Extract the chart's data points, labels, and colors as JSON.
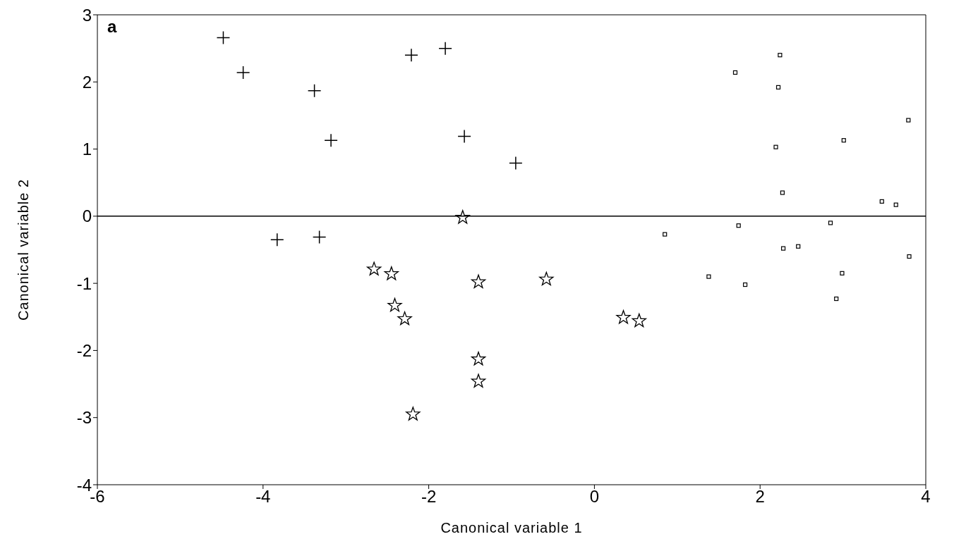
{
  "chart_data": {
    "type": "scatter",
    "xlabel": "Canonical variable 1",
    "ylabel": "Canonical variable 2",
    "annotations": [
      "a"
    ],
    "xlim": [
      -6,
      4
    ],
    "xticks": [
      -6,
      -4,
      -2,
      0,
      2,
      4
    ],
    "ylim": [
      -4,
      3
    ],
    "yticks": [
      -4,
      -3,
      -2,
      -1,
      0,
      1,
      2,
      3
    ],
    "grid": false,
    "legend": false,
    "ref_lines": [
      {
        "axis": "y",
        "value": 0,
        "color": "#000000"
      }
    ],
    "series": [
      {
        "color": "#000000",
        "marker": "cross",
        "x": [
          -4.48,
          -4.24,
          -3.38,
          -3.18,
          -2.21,
          -1.8,
          -1.57,
          -0.95,
          -3.83,
          -3.32
        ],
        "values": [
          2.66,
          2.14,
          1.87,
          1.13,
          2.4,
          2.5,
          1.19,
          0.79,
          -0.35,
          -0.31
        ]
      },
      {
        "color": "#000000",
        "marker": "star",
        "x": [
          -1.59,
          -2.66,
          -2.45,
          -2.41,
          -2.29,
          -1.4,
          -0.58,
          -1.4,
          -1.4,
          -2.19,
          0.35,
          0.54
        ],
        "values": [
          -0.02,
          -0.79,
          -0.86,
          -1.33,
          -1.53,
          -0.98,
          -0.94,
          -2.13,
          -2.46,
          -2.95,
          -1.51,
          -1.56
        ]
      },
      {
        "color": "#000000",
        "marker": "square",
        "x": [
          1.7,
          2.24,
          2.22,
          2.19,
          2.27,
          3.01,
          3.79,
          3.47,
          3.64,
          3.8,
          0.85,
          1.38,
          1.74,
          1.82,
          2.28,
          2.46,
          2.85,
          2.99,
          2.92
        ],
        "values": [
          2.14,
          2.4,
          1.92,
          1.03,
          0.35,
          1.13,
          1.43,
          0.22,
          0.17,
          -0.6,
          -0.27,
          -0.9,
          -0.14,
          -1.02,
          -0.48,
          -0.45,
          -0.1,
          -0.85,
          -1.23
        ]
      }
    ]
  }
}
